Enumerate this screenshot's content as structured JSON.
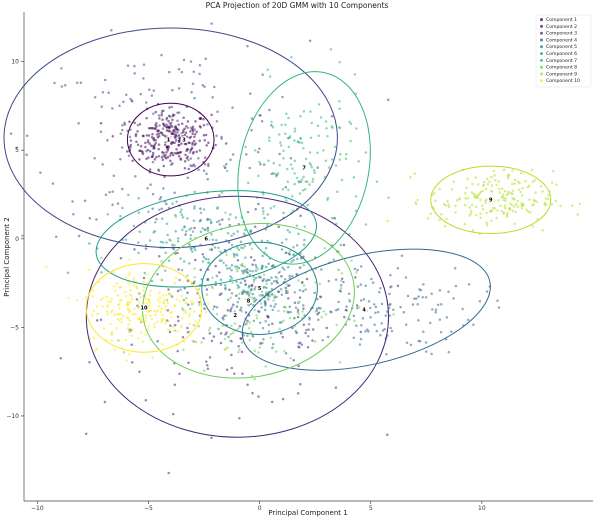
{
  "chart_data": {
    "type": "scatter",
    "title": "PCA Projection of 20D GMM with 10 Components",
    "xlabel": "Principal Component 1",
    "ylabel": "Principal Component 2",
    "xlim": [
      -10.6,
      15.0
    ],
    "ylim": [
      -14.8,
      12.8
    ],
    "xticks": [
      -10,
      -5,
      0,
      5,
      10
    ],
    "yticks": [
      -10,
      -5,
      0,
      5,
      10
    ],
    "grid": false,
    "legend_position": "top-right",
    "series": [
      {
        "name": "Component 1",
        "color": "#440154",
        "center": [
          -4.0,
          5.6
        ],
        "spread": [
          0.9,
          0.8
        ],
        "n": 260,
        "ellipse": {
          "rx": 1.95,
          "ry": 2.05,
          "angle": 0
        }
      },
      {
        "name": "Component 2",
        "color": "#482878",
        "center": [
          -1.0,
          -4.4
        ],
        "spread": [
          3.0,
          2.6
        ],
        "n": 200,
        "ellipse": {
          "rx": 6.8,
          "ry": 6.8,
          "angle": 0
        }
      },
      {
        "name": "Component 3",
        "color": "#3e4a89",
        "center": [
          -4.0,
          5.7
        ],
        "spread": [
          3.1,
          2.7
        ],
        "n": 200,
        "ellipse": {
          "rx": 7.5,
          "ry": 6.2,
          "angle": 0
        }
      },
      {
        "name": "Component 4",
        "color": "#31688e",
        "center": [
          4.8,
          -4.0
        ],
        "spread": [
          2.5,
          1.3
        ],
        "n": 160,
        "ellipse": {
          "rx": 5.7,
          "ry": 3.1,
          "angle": -13
        }
      },
      {
        "name": "Component 5",
        "color": "#26828e",
        "center": [
          0.0,
          -2.8
        ],
        "spread": [
          1.2,
          1.2
        ],
        "n": 180,
        "ellipse": {
          "rx": 2.6,
          "ry": 2.6,
          "angle": 0
        }
      },
      {
        "name": "Component 6",
        "color": "#1f9e89",
        "center": [
          -2.4,
          0.0
        ],
        "spread": [
          2.2,
          1.1
        ],
        "n": 170,
        "ellipse": {
          "rx": 5.0,
          "ry": 2.6,
          "angle": -8
        }
      },
      {
        "name": "Component 7",
        "color": "#35b779",
        "center": [
          2.0,
          4.0
        ],
        "spread": [
          1.4,
          2.3
        ],
        "n": 150,
        "ellipse": {
          "rx": 2.9,
          "ry": 5.5,
          "angle": 12
        }
      },
      {
        "name": "Component 8",
        "color": "#6ece58",
        "center": [
          -0.5,
          -3.5
        ],
        "spread": [
          2.2,
          1.9
        ],
        "n": 160,
        "ellipse": {
          "rx": 4.8,
          "ry": 4.3,
          "angle": -10
        }
      },
      {
        "name": "Component 9",
        "color": "#b5de2b",
        "center": [
          10.4,
          2.2
        ],
        "spread": [
          1.4,
          0.8
        ],
        "n": 200,
        "ellipse": {
          "rx": 2.7,
          "ry": 1.9,
          "angle": 0
        }
      },
      {
        "name": "Component 10",
        "color": "#fde725",
        "center": [
          -5.2,
          -3.9
        ],
        "spread": [
          1.3,
          1.1
        ],
        "n": 220,
        "ellipse": {
          "rx": 2.6,
          "ry": 2.5,
          "angle": 0
        }
      }
    ],
    "center_labels": [
      {
        "text": "1",
        "x": -4.1,
        "y": 5.6
      },
      {
        "text": "3",
        "x": -3.4,
        "y": 5.6
      },
      {
        "text": "2",
        "x": -1.1,
        "y": -4.3
      },
      {
        "text": "4",
        "x": 4.7,
        "y": -4.0
      },
      {
        "text": "5",
        "x": 0.0,
        "y": -2.8
      },
      {
        "text": "6",
        "x": -2.4,
        "y": 0.0
      },
      {
        "text": "7",
        "x": 2.0,
        "y": 4.0
      },
      {
        "text": "8",
        "x": -0.5,
        "y": -3.5
      },
      {
        "text": "9",
        "x": 10.4,
        "y": 2.2
      },
      {
        "text": "10",
        "x": -5.2,
        "y": -3.9
      }
    ]
  }
}
